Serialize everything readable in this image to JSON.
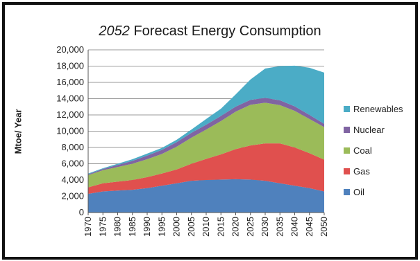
{
  "chart_data": {
    "type": "area",
    "title_italic": "2052",
    "title_rest": " Forecast Energy Consumption",
    "xlabel": "",
    "ylabel": "Mtoe/ Year",
    "ylim": [
      0,
      20000
    ],
    "y_ticks": [
      "0",
      "2,000",
      "4,000",
      "6,000",
      "8,000",
      "10,000",
      "12,000",
      "14,000",
      "16,000",
      "18,000",
      "20,000"
    ],
    "x": [
      "1970",
      "1975",
      "1980",
      "1985",
      "1990",
      "1995",
      "2000",
      "2005",
      "2010",
      "2015",
      "2020",
      "2025",
      "2030",
      "2035",
      "2040",
      "2045",
      "2050"
    ],
    "grid": true,
    "stacked": true,
    "legend_position": "right",
    "series": [
      {
        "name": "Oil",
        "color": "#4f81bd",
        "values": [
          2300,
          2600,
          2700,
          2800,
          3000,
          3300,
          3600,
          3900,
          4000,
          4050,
          4100,
          4050,
          3900,
          3600,
          3300,
          3000,
          2600
        ]
      },
      {
        "name": "Gas",
        "color": "#e0504e",
        "values": [
          800,
          1000,
          1100,
          1200,
          1350,
          1500,
          1700,
          2100,
          2600,
          3100,
          3700,
          4200,
          4600,
          4900,
          4700,
          4300,
          3900
        ]
      },
      {
        "name": "Coal",
        "color": "#9bbb59",
        "values": [
          1500,
          1600,
          1800,
          2000,
          2200,
          2400,
          2800,
          3200,
          3600,
          4100,
          4600,
          5000,
          5000,
          4700,
          4500,
          4200,
          4000
        ]
      },
      {
        "name": "Nuclear",
        "color": "#8064a2",
        "values": [
          100,
          150,
          250,
          350,
          450,
          500,
          550,
          600,
          600,
          620,
          620,
          600,
          600,
          600,
          550,
          500,
          400
        ]
      },
      {
        "name": "Renewables",
        "color": "#4bacc6",
        "values": [
          100,
          100,
          150,
          200,
          250,
          250,
          300,
          400,
          700,
          900,
          1500,
          2500,
          3600,
          4200,
          5000,
          5800,
          6300
        ]
      }
    ],
    "legend": [
      "Renewables",
      "Nuclear",
      "Coal",
      "Gas",
      "Oil"
    ]
  }
}
